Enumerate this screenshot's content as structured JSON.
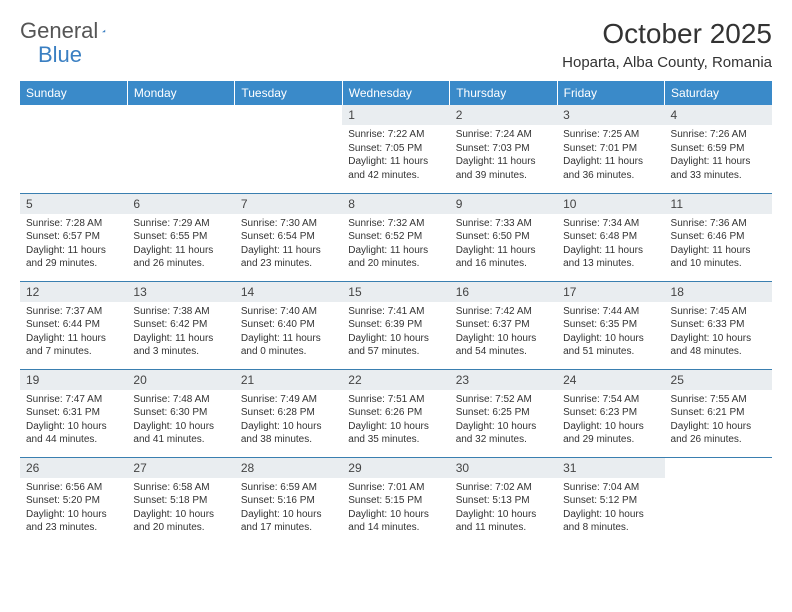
{
  "logo": {
    "part1": "General",
    "part2": "Blue"
  },
  "title": "October 2025",
  "location": "Hoparta, Alba County, Romania",
  "colors": {
    "header_bg": "#3a8ac9",
    "header_text": "#ffffff",
    "daynum_bg": "#e9edf0",
    "border": "#3a7fb0",
    "logo_gray": "#555555",
    "logo_blue": "#3a7fc2",
    "text": "#333333",
    "page_bg": "#ffffff"
  },
  "weekdays": [
    "Sunday",
    "Monday",
    "Tuesday",
    "Wednesday",
    "Thursday",
    "Friday",
    "Saturday"
  ],
  "weeks": [
    [
      {
        "n": "",
        "sr": "",
        "ss": "",
        "dl": ""
      },
      {
        "n": "",
        "sr": "",
        "ss": "",
        "dl": ""
      },
      {
        "n": "",
        "sr": "",
        "ss": "",
        "dl": ""
      },
      {
        "n": "1",
        "sr": "Sunrise: 7:22 AM",
        "ss": "Sunset: 7:05 PM",
        "dl": "Daylight: 11 hours and 42 minutes."
      },
      {
        "n": "2",
        "sr": "Sunrise: 7:24 AM",
        "ss": "Sunset: 7:03 PM",
        "dl": "Daylight: 11 hours and 39 minutes."
      },
      {
        "n": "3",
        "sr": "Sunrise: 7:25 AM",
        "ss": "Sunset: 7:01 PM",
        "dl": "Daylight: 11 hours and 36 minutes."
      },
      {
        "n": "4",
        "sr": "Sunrise: 7:26 AM",
        "ss": "Sunset: 6:59 PM",
        "dl": "Daylight: 11 hours and 33 minutes."
      }
    ],
    [
      {
        "n": "5",
        "sr": "Sunrise: 7:28 AM",
        "ss": "Sunset: 6:57 PM",
        "dl": "Daylight: 11 hours and 29 minutes."
      },
      {
        "n": "6",
        "sr": "Sunrise: 7:29 AM",
        "ss": "Sunset: 6:55 PM",
        "dl": "Daylight: 11 hours and 26 minutes."
      },
      {
        "n": "7",
        "sr": "Sunrise: 7:30 AM",
        "ss": "Sunset: 6:54 PM",
        "dl": "Daylight: 11 hours and 23 minutes."
      },
      {
        "n": "8",
        "sr": "Sunrise: 7:32 AM",
        "ss": "Sunset: 6:52 PM",
        "dl": "Daylight: 11 hours and 20 minutes."
      },
      {
        "n": "9",
        "sr": "Sunrise: 7:33 AM",
        "ss": "Sunset: 6:50 PM",
        "dl": "Daylight: 11 hours and 16 minutes."
      },
      {
        "n": "10",
        "sr": "Sunrise: 7:34 AM",
        "ss": "Sunset: 6:48 PM",
        "dl": "Daylight: 11 hours and 13 minutes."
      },
      {
        "n": "11",
        "sr": "Sunrise: 7:36 AM",
        "ss": "Sunset: 6:46 PM",
        "dl": "Daylight: 11 hours and 10 minutes."
      }
    ],
    [
      {
        "n": "12",
        "sr": "Sunrise: 7:37 AM",
        "ss": "Sunset: 6:44 PM",
        "dl": "Daylight: 11 hours and 7 minutes."
      },
      {
        "n": "13",
        "sr": "Sunrise: 7:38 AM",
        "ss": "Sunset: 6:42 PM",
        "dl": "Daylight: 11 hours and 3 minutes."
      },
      {
        "n": "14",
        "sr": "Sunrise: 7:40 AM",
        "ss": "Sunset: 6:40 PM",
        "dl": "Daylight: 11 hours and 0 minutes."
      },
      {
        "n": "15",
        "sr": "Sunrise: 7:41 AM",
        "ss": "Sunset: 6:39 PM",
        "dl": "Daylight: 10 hours and 57 minutes."
      },
      {
        "n": "16",
        "sr": "Sunrise: 7:42 AM",
        "ss": "Sunset: 6:37 PM",
        "dl": "Daylight: 10 hours and 54 minutes."
      },
      {
        "n": "17",
        "sr": "Sunrise: 7:44 AM",
        "ss": "Sunset: 6:35 PM",
        "dl": "Daylight: 10 hours and 51 minutes."
      },
      {
        "n": "18",
        "sr": "Sunrise: 7:45 AM",
        "ss": "Sunset: 6:33 PM",
        "dl": "Daylight: 10 hours and 48 minutes."
      }
    ],
    [
      {
        "n": "19",
        "sr": "Sunrise: 7:47 AM",
        "ss": "Sunset: 6:31 PM",
        "dl": "Daylight: 10 hours and 44 minutes."
      },
      {
        "n": "20",
        "sr": "Sunrise: 7:48 AM",
        "ss": "Sunset: 6:30 PM",
        "dl": "Daylight: 10 hours and 41 minutes."
      },
      {
        "n": "21",
        "sr": "Sunrise: 7:49 AM",
        "ss": "Sunset: 6:28 PM",
        "dl": "Daylight: 10 hours and 38 minutes."
      },
      {
        "n": "22",
        "sr": "Sunrise: 7:51 AM",
        "ss": "Sunset: 6:26 PM",
        "dl": "Daylight: 10 hours and 35 minutes."
      },
      {
        "n": "23",
        "sr": "Sunrise: 7:52 AM",
        "ss": "Sunset: 6:25 PM",
        "dl": "Daylight: 10 hours and 32 minutes."
      },
      {
        "n": "24",
        "sr": "Sunrise: 7:54 AM",
        "ss": "Sunset: 6:23 PM",
        "dl": "Daylight: 10 hours and 29 minutes."
      },
      {
        "n": "25",
        "sr": "Sunrise: 7:55 AM",
        "ss": "Sunset: 6:21 PM",
        "dl": "Daylight: 10 hours and 26 minutes."
      }
    ],
    [
      {
        "n": "26",
        "sr": "Sunrise: 6:56 AM",
        "ss": "Sunset: 5:20 PM",
        "dl": "Daylight: 10 hours and 23 minutes."
      },
      {
        "n": "27",
        "sr": "Sunrise: 6:58 AM",
        "ss": "Sunset: 5:18 PM",
        "dl": "Daylight: 10 hours and 20 minutes."
      },
      {
        "n": "28",
        "sr": "Sunrise: 6:59 AM",
        "ss": "Sunset: 5:16 PM",
        "dl": "Daylight: 10 hours and 17 minutes."
      },
      {
        "n": "29",
        "sr": "Sunrise: 7:01 AM",
        "ss": "Sunset: 5:15 PM",
        "dl": "Daylight: 10 hours and 14 minutes."
      },
      {
        "n": "30",
        "sr": "Sunrise: 7:02 AM",
        "ss": "Sunset: 5:13 PM",
        "dl": "Daylight: 10 hours and 11 minutes."
      },
      {
        "n": "31",
        "sr": "Sunrise: 7:04 AM",
        "ss": "Sunset: 5:12 PM",
        "dl": "Daylight: 10 hours and 8 minutes."
      },
      {
        "n": "",
        "sr": "",
        "ss": "",
        "dl": ""
      }
    ]
  ]
}
